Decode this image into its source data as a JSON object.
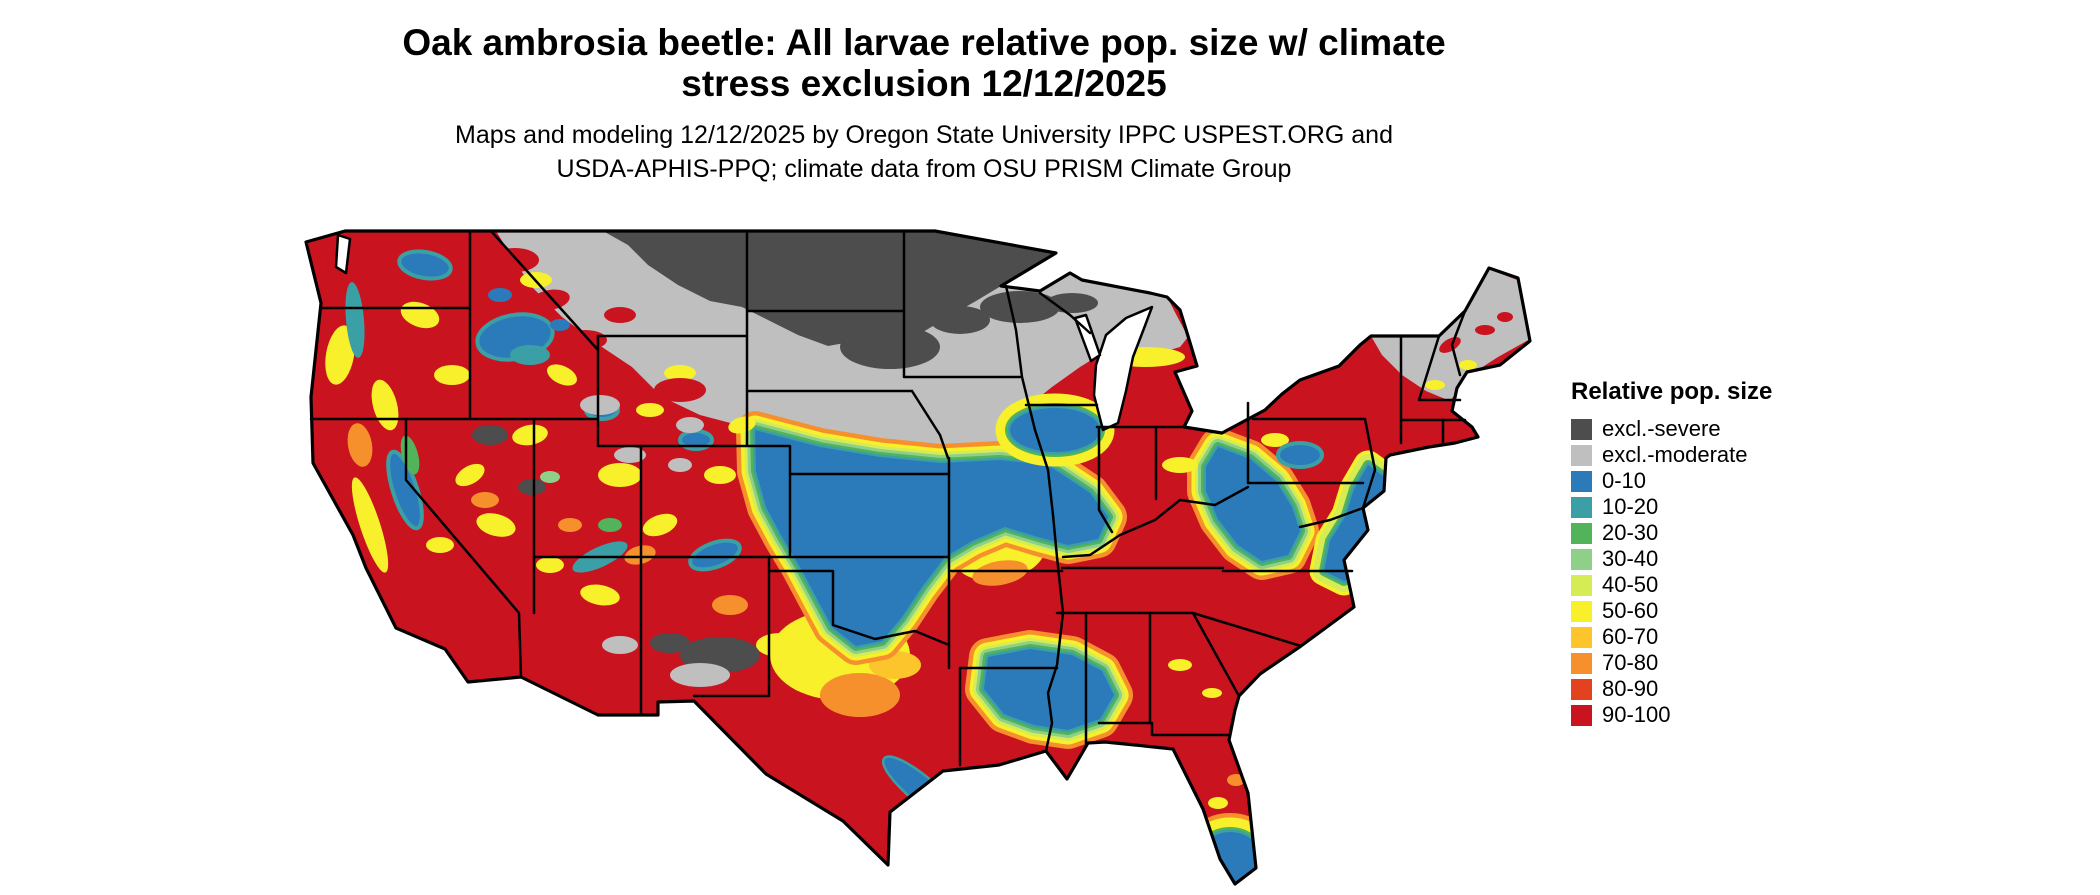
{
  "title": {
    "line1": "Oak ambrosia beetle: All larvae relative pop. size w/ climate",
    "line2": "stress exclusion 12/12/2025"
  },
  "subtitle": {
    "line1": "Maps and modeling 12/12/2025 by Oregon State University IPPC USPEST.ORG and",
    "line2": "USDA-APHIS-PPQ; climate data from OSU PRISM Climate Group"
  },
  "legend": {
    "title": "Relative pop. size",
    "entries": [
      {
        "label": "excl.-severe",
        "color": "#4d4d4d"
      },
      {
        "label": "excl.-moderate",
        "color": "#bfbfbf"
      },
      {
        "label": "0-10",
        "color": "#2b7bba"
      },
      {
        "label": "10-20",
        "color": "#3aa0a6"
      },
      {
        "label": "20-30",
        "color": "#52b35a"
      },
      {
        "label": "30-40",
        "color": "#8ed08a"
      },
      {
        "label": "40-50",
        "color": "#d5ec55"
      },
      {
        "label": "50-60",
        "color": "#f7f02b"
      },
      {
        "label": "60-70",
        "color": "#fcc52b"
      },
      {
        "label": "70-80",
        "color": "#f6902c"
      },
      {
        "label": "80-90",
        "color": "#e2421f"
      },
      {
        "label": "90-100",
        "color": "#c9131f"
      }
    ]
  },
  "map": {
    "type": "choropleth-raster-map",
    "region": "contiguous United States",
    "regions_summary": [
      {
        "area": "northern Montana, North Dakota, northern Minnesota, northern Wisconsin",
        "class": "excl.-severe"
      },
      {
        "area": "southern Montana, Wyoming, South Dakota, southern Minnesota, Wisconsin, upper Michigan",
        "class": "excl.-moderate"
      },
      {
        "area": "northern New England (Maine, NH, VT) and Adirondacks",
        "class": "excl.-moderate"
      },
      {
        "area": "central plains (Nebraska, Kansas, Iowa, northern Missouri, Oklahoma, Illinois, Indiana)",
        "class": "0-10"
      },
      {
        "area": "central Appalachians (West Virginia, western Virginia, eastern Kentucky)",
        "class": "0-10"
      },
      {
        "area": "Gulf coast (southern Louisiana, Mississippi, Alabama)",
        "class": "0-10"
      },
      {
        "area": "mid-Atlantic coastal plain and eastern North Carolina",
        "class": "0-10"
      },
      {
        "area": "south Florida tip",
        "class": "0-10"
      },
      {
        "area": "central Texas and Ozarks",
        "class": "40-70 transition mosaic"
      },
      {
        "area": "West (WA, OR, CA, NV, UT, AZ, NM, CO)",
        "class": "mostly 90-100 with mountain mosaic of 0-60 and exclusion patches"
      },
      {
        "area": "Southeast (AR, TN, MS, AL, GA, SC, NC piedmont, VA)",
        "class": "90-100"
      },
      {
        "area": "Ohio valley, lower Michigan, Pennsylvania, southern New England",
        "class": "90-100"
      },
      {
        "area": "Florida peninsula and Texas south plains",
        "class": "90-100"
      }
    ]
  }
}
